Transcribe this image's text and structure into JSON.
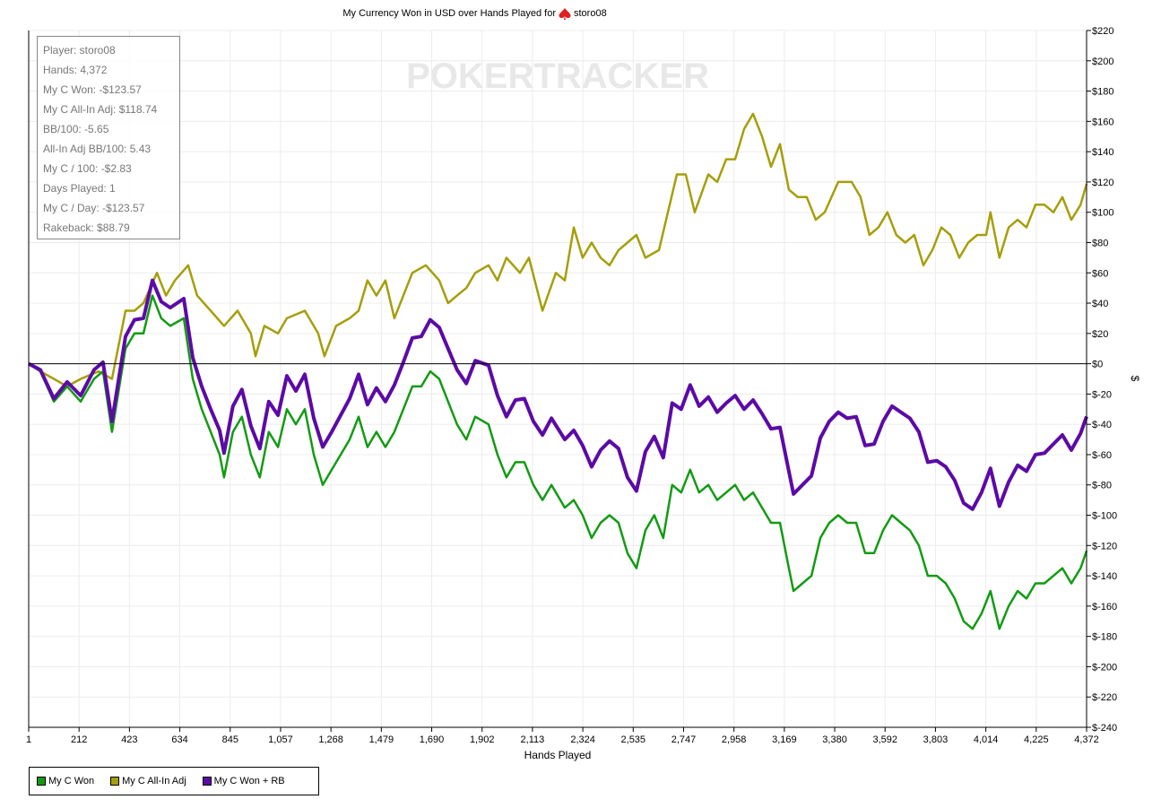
{
  "chart_data": {
    "type": "line",
    "title": "My Currency Won in USD over Hands Played for",
    "player": "storo08",
    "xlabel": "Hands Played",
    "ylabel": "$",
    "xlim": [
      1,
      4372
    ],
    "ylim": [
      -240,
      220
    ],
    "x_ticks": [
      "1",
      "212",
      "423",
      "634",
      "845",
      "1,057",
      "1,268",
      "1,479",
      "1,690",
      "1,902",
      "2,113",
      "2,324",
      "2,535",
      "2,747",
      "2,958",
      "3,169",
      "3,380",
      "3,592",
      "3,803",
      "4,014",
      "4,225",
      "4,372"
    ],
    "y_ticks": [
      220,
      200,
      180,
      160,
      140,
      120,
      100,
      80,
      60,
      40,
      20,
      0,
      -20,
      -40,
      -60,
      -80,
      -100,
      -120,
      -140,
      -160,
      -180,
      -200,
      -220,
      -240
    ],
    "grid": true,
    "legend_position": "bottom-left",
    "watermark": "POKERTRACKER",
    "series": [
      {
        "name": "My C Won",
        "color": "#129b12",
        "x": [
          1,
          49,
          105,
          160,
          216,
          271,
          308,
          345,
          401,
          438,
          475,
          512,
          549,
          586,
          642,
          679,
          716,
          753,
          790,
          808,
          845,
          882,
          919,
          956,
          993,
          1031,
          1068,
          1105,
          1142,
          1179,
          1216,
          1253,
          1290,
          1327,
          1364,
          1401,
          1438,
          1475,
          1512,
          1549,
          1586,
          1623,
          1660,
          1697,
          1734,
          1771,
          1809,
          1846,
          1901,
          1938,
          1975,
          2012,
          2049,
          2086,
          2124,
          2161,
          2216,
          2253,
          2290,
          2327,
          2364,
          2401,
          2438,
          2475,
          2512,
          2549,
          2586,
          2623,
          2660,
          2697,
          2734,
          2771,
          2809,
          2846,
          2883,
          2920,
          2957,
          2994,
          3031,
          3068,
          3105,
          3142,
          3161,
          3198,
          3235,
          3272,
          3309,
          3346,
          3383,
          3420,
          3457,
          3494,
          3531,
          3568,
          3605,
          3642,
          3679,
          3716,
          3753,
          3790,
          3827,
          3864,
          3901,
          3938,
          3975,
          4012,
          4050,
          4087,
          4124,
          4161,
          4198,
          4235,
          4272,
          4309,
          4347,
          4372
        ],
        "values": [
          0,
          -5,
          -25,
          -15,
          -25,
          -10,
          -5,
          -45,
          10,
          20,
          20,
          45,
          30,
          25,
          30,
          -10,
          -30,
          -45,
          -60,
          -75,
          -45,
          -35,
          -60,
          -75,
          -45,
          -55,
          -30,
          -40,
          -30,
          -60,
          -80,
          -70,
          -60,
          -50,
          -35,
          -55,
          -45,
          -55,
          -45,
          -30,
          -15,
          -15,
          -5,
          -10,
          -25,
          -40,
          -50,
          -35,
          -40,
          -60,
          -75,
          -65,
          -65,
          -80,
          -90,
          -80,
          -95,
          -90,
          -100,
          -115,
          -105,
          -100,
          -105,
          -125,
          -135,
          -110,
          -100,
          -115,
          -80,
          -85,
          -70,
          -85,
          -80,
          -90,
          -85,
          -80,
          -90,
          -85,
          -95,
          -105,
          -105,
          -135,
          -150,
          -145,
          -140,
          -115,
          -105,
          -100,
          -105,
          -105,
          -125,
          -125,
          -110,
          -100,
          -105,
          -110,
          -120,
          -140,
          -140,
          -145,
          -155,
          -170,
          -175,
          -165,
          -150,
          -175,
          -160,
          -150,
          -155,
          -145,
          -145,
          -140,
          -135,
          -145,
          -135,
          -123.57
        ]
      },
      {
        "name": "My C All-In Adj",
        "color": "#a69e0a",
        "x": [
          1,
          49,
          105,
          160,
          216,
          290,
          345,
          401,
          438,
          475,
          531,
          568,
          605,
          660,
          697,
          753,
          808,
          864,
          919,
          938,
          975,
          1031,
          1068,
          1142,
          1197,
          1223,
          1271,
          1327,
          1364,
          1401,
          1438,
          1475,
          1512,
          1549,
          1586,
          1642,
          1697,
          1734,
          1771,
          1809,
          1846,
          1901,
          1938,
          1975,
          2031,
          2068,
          2124,
          2179,
          2216,
          2253,
          2290,
          2327,
          2364,
          2401,
          2438,
          2475,
          2512,
          2549,
          2605,
          2642,
          2679,
          2716,
          2753,
          2809,
          2846,
          2883,
          2920,
          2957,
          2994,
          3031,
          3068,
          3105,
          3142,
          3179,
          3216,
          3253,
          3290,
          3346,
          3401,
          3438,
          3475,
          3512,
          3549,
          3586,
          3623,
          3660,
          3698,
          3735,
          3772,
          3809,
          3846,
          3883,
          3920,
          3957,
          3975,
          4012,
          4050,
          4087,
          4124,
          4161,
          4198,
          4235,
          4272,
          4309,
          4347,
          4372
        ],
        "values": [
          0,
          -5,
          -10,
          -15,
          -10,
          -5,
          -10,
          35,
          35,
          40,
          60,
          45,
          55,
          65,
          45,
          35,
          25,
          35,
          20,
          5,
          25,
          20,
          30,
          35,
          20,
          5,
          25,
          30,
          35,
          55,
          45,
          55,
          30,
          45,
          60,
          65,
          55,
          40,
          45,
          50,
          60,
          65,
          55,
          70,
          60,
          70,
          35,
          60,
          55,
          90,
          70,
          80,
          70,
          65,
          75,
          80,
          85,
          70,
          75,
          100,
          125,
          125,
          100,
          125,
          120,
          135,
          135,
          155,
          165,
          150,
          130,
          145,
          115,
          110,
          110,
          95,
          100,
          120,
          120,
          110,
          85,
          90,
          100,
          85,
          80,
          85,
          65,
          75,
          90,
          85,
          70,
          80,
          85,
          85,
          100,
          70,
          90,
          95,
          90,
          105,
          105,
          100,
          110,
          95,
          105,
          118.74
        ]
      },
      {
        "name": "My C Won + RB",
        "color": "#5c0aa6",
        "x": [
          1,
          49,
          105,
          160,
          216,
          271,
          308,
          345,
          401,
          438,
          475,
          512,
          549,
          586,
          642,
          679,
          716,
          753,
          790,
          808,
          845,
          882,
          919,
          956,
          993,
          1031,
          1068,
          1105,
          1142,
          1179,
          1216,
          1253,
          1290,
          1327,
          1364,
          1401,
          1438,
          1475,
          1512,
          1549,
          1586,
          1623,
          1660,
          1697,
          1734,
          1771,
          1809,
          1846,
          1901,
          1938,
          1975,
          2012,
          2049,
          2086,
          2124,
          2161,
          2216,
          2253,
          2290,
          2327,
          2364,
          2401,
          2438,
          2475,
          2512,
          2549,
          2586,
          2623,
          2660,
          2697,
          2734,
          2771,
          2809,
          2846,
          2883,
          2920,
          2957,
          2994,
          3031,
          3068,
          3105,
          3142,
          3161,
          3198,
          3235,
          3272,
          3309,
          3346,
          3383,
          3420,
          3457,
          3494,
          3531,
          3568,
          3605,
          3642,
          3679,
          3716,
          3753,
          3790,
          3827,
          3864,
          3901,
          3938,
          3975,
          4012,
          4050,
          4087,
          4124,
          4161,
          4198,
          4235,
          4272,
          4309,
          4347,
          4372
        ],
        "values": [
          0,
          -4,
          -23,
          -12,
          -21,
          -4,
          1,
          -38,
          18,
          29,
          30,
          55,
          41,
          37,
          43,
          4,
          -15,
          -30,
          -44,
          -59,
          -28,
          -17,
          -41,
          -56,
          -25,
          -34,
          -8,
          -18,
          -7,
          -36,
          -55,
          -45,
          -34,
          -23,
          -7,
          -27,
          -16,
          -25,
          -14,
          1,
          17,
          18,
          29,
          24,
          10,
          -4,
          -13,
          2,
          -1,
          -21,
          -35,
          -24,
          -23,
          -38,
          -47,
          -36,
          -50,
          -44,
          -54,
          -68,
          -57,
          -51,
          -56,
          -75,
          -84,
          -58,
          -48,
          -62,
          -26,
          -30,
          -14,
          -28,
          -22,
          -32,
          -26,
          -21,
          -30,
          -24,
          -33,
          -43,
          -42,
          -71,
          -86,
          -80,
          -74,
          -49,
          -38,
          -32,
          -36,
          -35,
          -54,
          -53,
          -38,
          -28,
          -32,
          -36,
          -45,
          -65,
          -64,
          -68,
          -77,
          -92,
          -96,
          -85,
          -69,
          -94,
          -78,
          -67,
          -71,
          -60,
          -59,
          -53,
          -47,
          -57,
          -46,
          -34.78
        ]
      }
    ]
  },
  "stats": [
    "Player: storo08",
    "Hands: 4,372",
    "My C Won: -$123.57",
    "My C All-In Adj: $118.74",
    "BB/100: -5.65",
    "All-In Adj BB/100: 5.43",
    "My C / 100: -$2.83",
    "Days Played: 1",
    "My C / Day: -$123.57",
    "Rakeback: $88.79"
  ]
}
